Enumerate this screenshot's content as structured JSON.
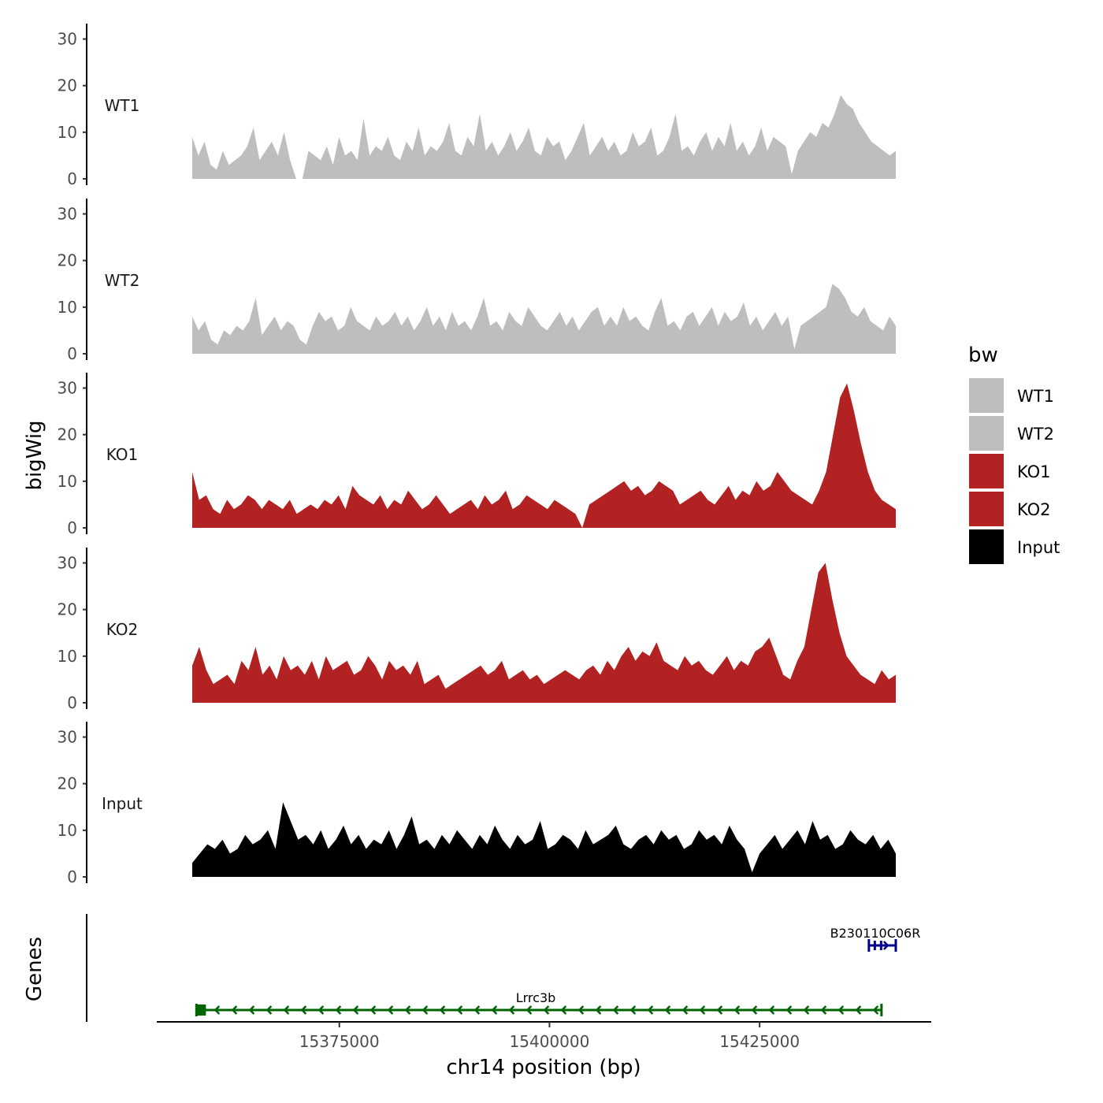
{
  "chart_data": {
    "type": "area",
    "region": {
      "chromosome": "chr14",
      "start": 15357500,
      "end": 15441200
    },
    "xlabel": "chr14 position (bp)",
    "x_ticks": [
      15375000,
      15400000,
      15425000
    ],
    "x_tick_labels": [
      "15375000",
      "15400000",
      "15425000"
    ],
    "ylabel": "bigWig",
    "ylim": [
      0,
      32
    ],
    "y_ticks": [
      0,
      10,
      20,
      30
    ],
    "y_tick_labels": [
      "0",
      "10",
      "20",
      "30"
    ],
    "legend": {
      "title": "bw",
      "position": "right"
    },
    "series": [
      {
        "name": "WT1",
        "color": "#bebebe",
        "values": [
          9,
          5,
          8,
          3,
          2,
          6,
          3,
          4,
          5,
          7,
          11,
          4,
          6,
          8,
          5,
          10,
          4,
          0,
          0,
          6,
          5,
          4,
          7,
          3,
          9,
          5,
          6,
          4,
          13,
          5,
          7,
          6,
          9,
          5,
          4,
          8,
          6,
          11,
          5,
          7,
          6,
          8,
          12,
          6,
          5,
          9,
          7,
          14,
          6,
          8,
          5,
          7,
          10,
          6,
          8,
          11,
          6,
          5,
          9,
          7,
          8,
          4,
          6,
          9,
          12,
          5,
          7,
          9,
          6,
          8,
          5,
          6,
          10,
          7,
          8,
          11,
          5,
          6,
          9,
          14,
          6,
          7,
          5,
          8,
          10,
          6,
          9,
          7,
          12,
          6,
          8,
          5,
          7,
          11,
          6,
          9,
          8,
          7,
          1,
          6,
          8,
          10,
          9,
          12,
          11,
          14,
          18,
          16,
          15,
          12,
          10,
          8,
          7,
          6,
          5,
          6
        ]
      },
      {
        "name": "WT2",
        "color": "#bebebe",
        "values": [
          8,
          5,
          7,
          3,
          2,
          5,
          4,
          6,
          5,
          7,
          12,
          4,
          6,
          8,
          5,
          7,
          6,
          3,
          2,
          6,
          9,
          7,
          8,
          5,
          6,
          10,
          7,
          6,
          5,
          8,
          6,
          7,
          9,
          6,
          8,
          5,
          7,
          10,
          6,
          8,
          5,
          9,
          6,
          7,
          5,
          8,
          12,
          6,
          7,
          5,
          9,
          7,
          6,
          10,
          8,
          6,
          5,
          7,
          9,
          6,
          8,
          5,
          7,
          9,
          10,
          6,
          8,
          6,
          10,
          7,
          8,
          6,
          5,
          9,
          12,
          6,
          7,
          5,
          8,
          9,
          6,
          8,
          10,
          6,
          9,
          7,
          8,
          11,
          6,
          8,
          5,
          7,
          9,
          6,
          8,
          1,
          6,
          7,
          8,
          9,
          10,
          15,
          14,
          12,
          9,
          8,
          10,
          7,
          6,
          5,
          8,
          6
        ]
      },
      {
        "name": "KO1",
        "color": "#b22222",
        "values": [
          12,
          6,
          7,
          4,
          3,
          6,
          4,
          5,
          7,
          6,
          4,
          6,
          5,
          4,
          6,
          3,
          4,
          5,
          4,
          6,
          5,
          7,
          4,
          9,
          7,
          6,
          5,
          7,
          4,
          6,
          5,
          8,
          6,
          4,
          5,
          7,
          5,
          3,
          4,
          5,
          6,
          4,
          7,
          5,
          6,
          8,
          4,
          5,
          7,
          6,
          5,
          4,
          6,
          5,
          4,
          3,
          0,
          5,
          6,
          7,
          8,
          9,
          10,
          8,
          9,
          7,
          8,
          10,
          9,
          8,
          5,
          6,
          7,
          8,
          6,
          5,
          7,
          9,
          6,
          8,
          7,
          10,
          8,
          9,
          12,
          10,
          8,
          7,
          6,
          5,
          8,
          12,
          20,
          28,
          31,
          25,
          18,
          12,
          8,
          6,
          5,
          4
        ]
      },
      {
        "name": "KO2",
        "color": "#b22222",
        "values": [
          8,
          12,
          7,
          4,
          5,
          6,
          4,
          9,
          7,
          12,
          6,
          8,
          5,
          10,
          7,
          8,
          6,
          9,
          5,
          10,
          7,
          8,
          9,
          6,
          7,
          10,
          8,
          5,
          9,
          7,
          8,
          6,
          9,
          4,
          5,
          6,
          3,
          4,
          5,
          6,
          7,
          8,
          6,
          7,
          9,
          5,
          6,
          7,
          5,
          6,
          4,
          5,
          6,
          7,
          6,
          5,
          7,
          8,
          6,
          9,
          7,
          10,
          12,
          9,
          11,
          10,
          13,
          9,
          8,
          7,
          10,
          8,
          9,
          7,
          6,
          8,
          10,
          7,
          9,
          8,
          11,
          12,
          14,
          10,
          6,
          5,
          9,
          12,
          20,
          28,
          30,
          22,
          15,
          10,
          8,
          6,
          5,
          4,
          7,
          5,
          6
        ]
      },
      {
        "name": "Input",
        "color": "#000000",
        "values": [
          3,
          5,
          7,
          6,
          8,
          5,
          6,
          9,
          7,
          8,
          10,
          6,
          16,
          12,
          8,
          9,
          7,
          10,
          6,
          8,
          11,
          7,
          9,
          6,
          8,
          7,
          10,
          6,
          9,
          13,
          7,
          8,
          6,
          9,
          7,
          10,
          8,
          6,
          9,
          7,
          11,
          8,
          6,
          9,
          7,
          8,
          12,
          6,
          7,
          9,
          8,
          6,
          10,
          7,
          8,
          9,
          11,
          7,
          6,
          8,
          9,
          7,
          10,
          8,
          9,
          6,
          7,
          10,
          8,
          9,
          7,
          11,
          8,
          6,
          1,
          5,
          7,
          9,
          6,
          8,
          10,
          7,
          12,
          8,
          9,
          6,
          7,
          10,
          8,
          7,
          9,
          6,
          8,
          5
        ]
      }
    ],
    "genes_track": {
      "ylabel": "Genes",
      "genes": [
        {
          "name": "Lrrc3b",
          "start": 15358000,
          "end": 15439500,
          "strand": "-",
          "color": "#006400"
        },
        {
          "name": "B230110C06R",
          "start": 15438000,
          "end": 15441200,
          "strand": "+",
          "color": "#00008b"
        }
      ]
    }
  }
}
